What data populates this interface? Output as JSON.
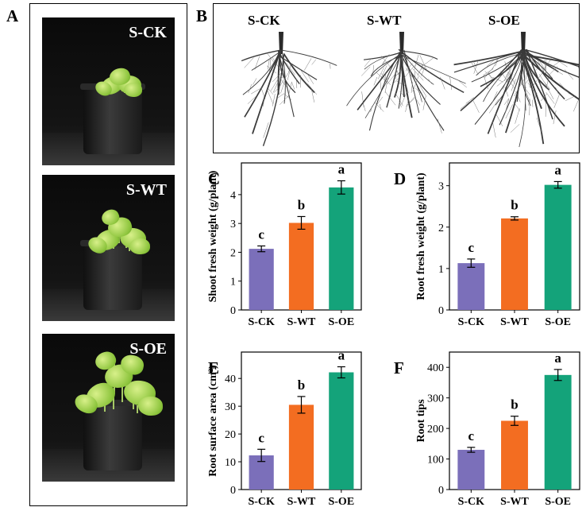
{
  "panels": {
    "A": {
      "letter": "A",
      "photos": [
        {
          "label": "S-CK",
          "growth": 0.45
        },
        {
          "label": "S-WT",
          "growth": 0.65
        },
        {
          "label": "S-OE",
          "growth": 1.0
        }
      ]
    },
    "B": {
      "letter": "B",
      "labels": [
        "S-CK",
        "S-WT",
        "S-OE"
      ]
    }
  },
  "colors": {
    "S-CK": "#7b6fba",
    "S-WT": "#f36d21",
    "S-OE": "#14a37a"
  },
  "chart_data": [
    {
      "panel": "C",
      "type": "bar",
      "categories": [
        "S-CK",
        "S-WT",
        "S-OE"
      ],
      "values": [
        2.12,
        3.02,
        4.25
      ],
      "errors": [
        0.1,
        0.22,
        0.23
      ],
      "letters": [
        "c",
        "b",
        "a"
      ],
      "ylabel": "Shoot fresh weight (g/plant)",
      "ylim": [
        0,
        5.1
      ],
      "yticks": [
        0,
        1,
        2,
        3,
        4
      ]
    },
    {
      "panel": "D",
      "type": "bar",
      "categories": [
        "S-CK",
        "S-WT",
        "S-OE"
      ],
      "values": [
        1.13,
        2.21,
        3.02
      ],
      "errors": [
        0.1,
        0.04,
        0.08
      ],
      "letters": [
        "c",
        "b",
        "a"
      ],
      "ylabel": "Root fresh weight (g/plant)",
      "ylim": [
        0,
        3.55
      ],
      "yticks": [
        0,
        1,
        2,
        3
      ]
    },
    {
      "panel": "E",
      "type": "bar",
      "categories": [
        "S-CK",
        "S-WT",
        "S-OE"
      ],
      "values": [
        12.3,
        30.5,
        42.2
      ],
      "errors": [
        2.2,
        3.0,
        2.0
      ],
      "letters": [
        "c",
        "b",
        "a"
      ],
      "ylabel": "Root surface area (cm²)",
      "ylim": [
        0,
        49.5
      ],
      "yticks": [
        0,
        10,
        20,
        30,
        40
      ]
    },
    {
      "panel": "F",
      "type": "bar",
      "categories": [
        "S-CK",
        "S-WT",
        "S-OE"
      ],
      "values": [
        130,
        225,
        375
      ],
      "errors": [
        8,
        15,
        18
      ],
      "letters": [
        "c",
        "b",
        "a"
      ],
      "ylabel": "Root tips",
      "ylim": [
        0,
        450
      ],
      "yticks": [
        0,
        100,
        200,
        300,
        400
      ]
    }
  ]
}
